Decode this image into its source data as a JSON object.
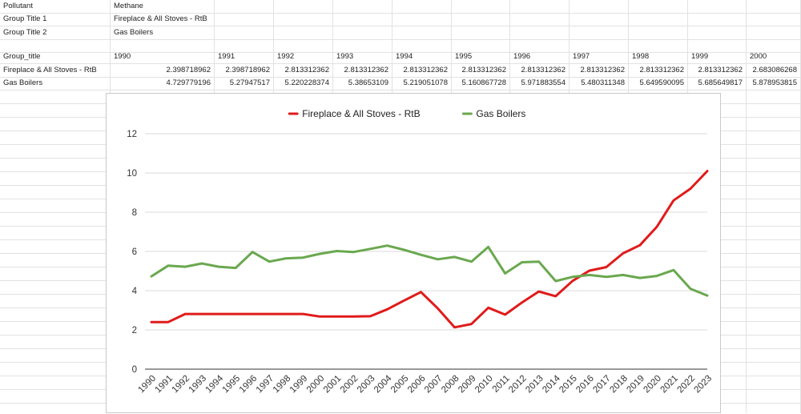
{
  "sheet": {
    "rows": [
      [
        "Pollutant",
        "Methane"
      ],
      [
        "Group Title 1",
        "Fireplace & All Stoves - RtB"
      ],
      [
        "Group Title 2",
        "Gas Boilers"
      ],
      [],
      [
        "Group_title",
        "1990",
        "1991",
        "1992",
        "1993",
        "1994",
        "1995",
        "1996",
        "1997",
        "1998",
        "1999",
        "2000"
      ],
      [
        "Fireplace & All Stoves - RtB",
        "2.398718962",
        "2.398718962",
        "2.813312362",
        "2.813312362",
        "2.813312362",
        "2.813312362",
        "2.813312362",
        "2.813312362",
        "2.813312362",
        "2.813312362",
        "2.683086268"
      ],
      [
        "Gas Boilers",
        "4.729779196",
        "5.27947517",
        "5.220228374",
        "5.38653109",
        "5.219051078",
        "5.160867728",
        "5.971883554",
        "5.480311348",
        "5.649590095",
        "5.685649817",
        "5.878953815"
      ]
    ]
  },
  "chart_data": {
    "type": "line",
    "title": "",
    "xlabel": "",
    "ylabel": "",
    "ylim": [
      0,
      12
    ],
    "yticks": [
      "0",
      "2",
      "4",
      "6",
      "8",
      "10",
      "12"
    ],
    "grid": true,
    "legend_position": "top-center",
    "x": [
      "1990",
      "1991",
      "1992",
      "1993",
      "1994",
      "1995",
      "1996",
      "1997",
      "1998",
      "1999",
      "2000",
      "2001",
      "2002",
      "2003",
      "2004",
      "2005",
      "2006",
      "2007",
      "2008",
      "2009",
      "2010",
      "2011",
      "2012",
      "2013",
      "2014",
      "2015",
      "2016",
      "2017",
      "2018",
      "2019",
      "2020",
      "2021",
      "2022",
      "2023"
    ],
    "series": [
      {
        "name": "Fireplace & All Stoves - RtB",
        "color": "#e01b1b",
        "values": [
          2.398718962,
          2.398718962,
          2.813312362,
          2.813312362,
          2.813312362,
          2.813312362,
          2.813312362,
          2.813312362,
          2.813312362,
          2.813312362,
          2.683086268,
          2.68,
          2.68,
          2.7,
          3.05,
          3.5,
          3.93,
          3.1,
          2.13,
          2.3,
          3.13,
          2.78,
          3.4,
          3.96,
          3.72,
          4.5,
          5.02,
          5.2,
          5.9,
          6.32,
          7.25,
          8.6,
          9.2,
          10.1
        ]
      },
      {
        "name": "Gas Boilers",
        "color": "#6aa84f",
        "values": [
          4.729779196,
          5.27947517,
          5.220228374,
          5.38653109,
          5.219051078,
          5.160867728,
          5.971883554,
          5.480311348,
          5.649590095,
          5.685649817,
          5.878953815,
          6.02,
          5.97,
          6.13,
          6.3,
          6.08,
          5.83,
          5.6,
          5.72,
          5.48,
          6.23,
          4.88,
          5.45,
          5.48,
          4.49,
          4.7,
          4.8,
          4.7,
          4.8,
          4.65,
          4.75,
          5.05,
          4.1,
          3.75
        ]
      }
    ]
  }
}
